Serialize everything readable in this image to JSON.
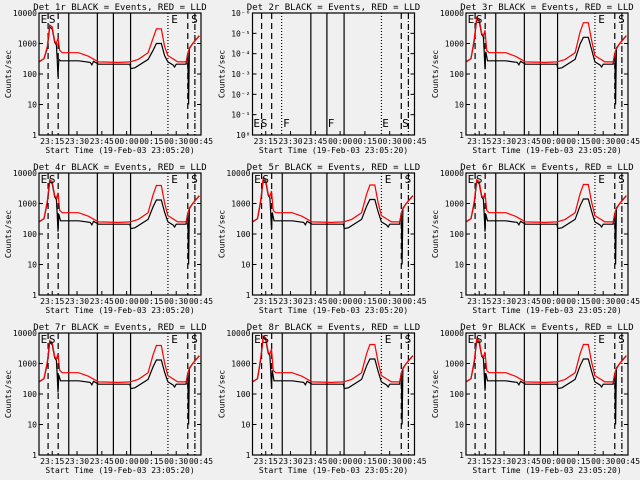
{
  "colors": {
    "events": "#000000",
    "lld": "#ff0000",
    "background": "#f0f0f0"
  },
  "chart_data": {
    "type": "line",
    "layout": "3x3 grid",
    "xlabel": "Start Time (19-Feb-03 23:05:20)",
    "ylabel": "Counts/sec",
    "xlim_minutes_after_2305": [
      2,
      100
    ],
    "xticks": [
      {
        "m": 10,
        "label": "23:15"
      },
      {
        "m": 25,
        "label": "23:30"
      },
      {
        "m": 40,
        "label": "23:45"
      },
      {
        "m": 55,
        "label": "00:00"
      },
      {
        "m": 70,
        "label": "00:15"
      },
      {
        "m": 85,
        "label": "00:30"
      },
      {
        "m": 100,
        "label": "00:45"
      }
    ],
    "yticks_default": [
      "1",
      "10",
      "100",
      "1000",
      "10000"
    ],
    "ylim_default": [
      1,
      10000
    ],
    "vlines_default": [
      {
        "m": 7.5,
        "style": "dashed"
      },
      {
        "m": 13.6,
        "style": "dashed"
      },
      {
        "m": 20,
        "style": "solid"
      },
      {
        "m": 37.3,
        "style": "solid"
      },
      {
        "m": 47,
        "style": "solid"
      },
      {
        "m": 57.4,
        "style": "solid"
      },
      {
        "m": 80,
        "style": "dotted"
      },
      {
        "m": 92,
        "style": "dashed"
      },
      {
        "m": 96.3,
        "style": "dashdot"
      }
    ],
    "letters_default": [
      {
        "m": 3,
        "t": "E"
      },
      {
        "m": 8,
        "t": "S"
      },
      {
        "m": 82,
        "t": "E"
      },
      {
        "m": 94,
        "t": "S"
      }
    ],
    "base_red": [
      [
        2,
        250
      ],
      [
        5,
        320
      ],
      [
        7,
        800
      ],
      [
        8.5,
        4000
      ],
      [
        10,
        3500
      ],
      [
        11.5,
        1200
      ],
      [
        12.5,
        1000
      ],
      [
        13.5,
        1500
      ],
      [
        14.5,
        600
      ],
      [
        16,
        500
      ],
      [
        26,
        500
      ],
      [
        32,
        380
      ],
      [
        38,
        250
      ],
      [
        50,
        240
      ],
      [
        57,
        250
      ],
      [
        62,
        300
      ],
      [
        68,
        500
      ],
      [
        71,
        1500
      ],
      [
        73,
        3000
      ],
      [
        76,
        3000
      ],
      [
        78,
        800
      ],
      [
        80,
        400
      ],
      [
        86,
        250
      ],
      [
        91,
        250
      ],
      [
        92.5,
        600
      ],
      [
        95,
        1000
      ],
      [
        99,
        1800
      ]
    ],
    "base_black": [
      [
        2,
        250
      ],
      [
        5,
        320
      ],
      [
        7,
        700
      ],
      [
        8.5,
        3500
      ],
      [
        10,
        3000
      ],
      [
        11.5,
        1100
      ],
      [
        12.5,
        900
      ],
      [
        13,
        300
      ],
      [
        13.5,
        80
      ],
      [
        14,
        300
      ],
      [
        15,
        270
      ],
      [
        26,
        270
      ],
      [
        33,
        240
      ],
      [
        34,
        200
      ],
      [
        35,
        260
      ],
      [
        38,
        210
      ],
      [
        50,
        210
      ],
      [
        57,
        210
      ],
      [
        57.5,
        150
      ],
      [
        60,
        160
      ],
      [
        68,
        300
      ],
      [
        71,
        600
      ],
      [
        73,
        1000
      ],
      [
        76,
        1000
      ],
      [
        78,
        400
      ],
      [
        80,
        250
      ],
      [
        83,
        200
      ],
      [
        84,
        170
      ],
      [
        85,
        210
      ],
      [
        91,
        210
      ],
      [
        92,
        500
      ],
      [
        92.5,
        10
      ],
      [
        93,
        700
      ],
      [
        95,
        1000
      ],
      [
        99,
        1800
      ]
    ],
    "panels": [
      {
        "title": "Det 1r BLACK = Events, RED = LLD",
        "peak1": 1.0,
        "peak2": 1.0
      },
      {
        "title": "Det 2r BLACK = Events, RED = LLD",
        "empty": true,
        "yticks": [
          "10⁰",
          "10⁻¹",
          "10⁻²",
          "10⁻³",
          "10⁻⁴",
          "10⁻⁵",
          "10⁻⁶"
        ],
        "letters": [
          {
            "m": 2.5,
            "t": "E"
          },
          {
            "m": 7,
            "t": "S"
          },
          {
            "m": 20.5,
            "t": "F"
          },
          {
            "m": 47.5,
            "t": "F"
          },
          {
            "m": 80.5,
            "t": "E"
          },
          {
            "m": 92.5,
            "t": "S"
          }
        ],
        "vlines": [
          {
            "m": 7.5,
            "style": "dashed"
          },
          {
            "m": 13.6,
            "style": "dashed"
          },
          {
            "m": 19.6,
            "style": "dotted"
          },
          {
            "m": 37.3,
            "style": "solid"
          },
          {
            "m": 47,
            "style": "solid"
          },
          {
            "m": 57.4,
            "style": "solid"
          },
          {
            "m": 80,
            "style": "dotted"
          },
          {
            "m": 92,
            "style": "dashed"
          },
          {
            "m": 96.3,
            "style": "dashdot"
          }
        ]
      },
      {
        "title": "Det 3r BLACK = Events, RED = LLD",
        "peak1": 1.8,
        "peak2": 1.6
      },
      {
        "title": "Det 4r BLACK = Events, RED = LLD",
        "peak1": 1.5,
        "peak2": 1.3
      },
      {
        "title": "Det 5r BLACK = Events, RED = LLD",
        "peak1": 1.7,
        "peak2": 1.35
      },
      {
        "title": "Det 6r BLACK = Events, RED = LLD",
        "peak1": 1.5,
        "peak2": 1.4
      },
      {
        "title": "Det 7r BLACK = Events, RED = LLD",
        "peak1": 1.4,
        "peak2": 1.3
      },
      {
        "title": "Det 8r BLACK = Events, RED = LLD",
        "peak1": 2.0,
        "peak2": 1.4
      },
      {
        "title": "Det 9r BLACK = Events, RED = LLD",
        "peak1": 1.6,
        "peak2": 1.4
      }
    ]
  }
}
